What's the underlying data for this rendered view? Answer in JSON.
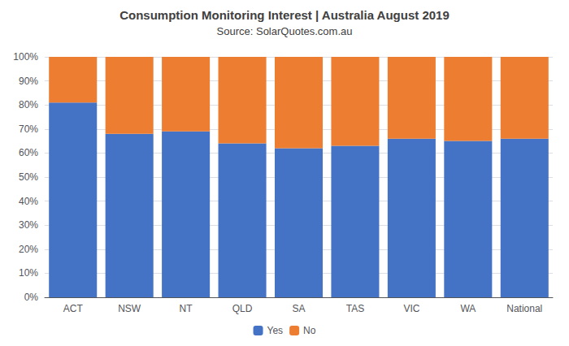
{
  "chart_data": {
    "type": "bar",
    "title": "Consumption Monitoring Interest | Australia August 2019",
    "subtitle": "Source: SolarQuotes.com.au",
    "categories": [
      "ACT",
      "NSW",
      "NT",
      "QLD",
      "SA",
      "TAS",
      "VIC",
      "WA",
      "National"
    ],
    "series": [
      {
        "name": "Yes",
        "color": "#4472C4",
        "values": [
          81,
          68,
          69,
          64,
          62,
          63,
          66,
          65,
          66
        ]
      },
      {
        "name": "No",
        "color": "#ED7D31",
        "values": [
          19,
          32,
          31,
          36,
          38,
          37,
          34,
          35,
          34
        ]
      }
    ],
    "stacked": true,
    "ylim": [
      0,
      100
    ],
    "yticks": [
      {
        "value": 0,
        "label": "0%"
      },
      {
        "value": 10,
        "label": "10%"
      },
      {
        "value": 20,
        "label": "20%"
      },
      {
        "value": 30,
        "label": "30%"
      },
      {
        "value": 40,
        "label": "40%"
      },
      {
        "value": 50,
        "label": "50%"
      },
      {
        "value": 60,
        "label": "60%"
      },
      {
        "value": 70,
        "label": "70%"
      },
      {
        "value": 80,
        "label": "80%"
      },
      {
        "value": 90,
        "label": "90%"
      },
      {
        "value": 100,
        "label": "100%"
      }
    ],
    "grid": true,
    "legend": "bottom"
  }
}
